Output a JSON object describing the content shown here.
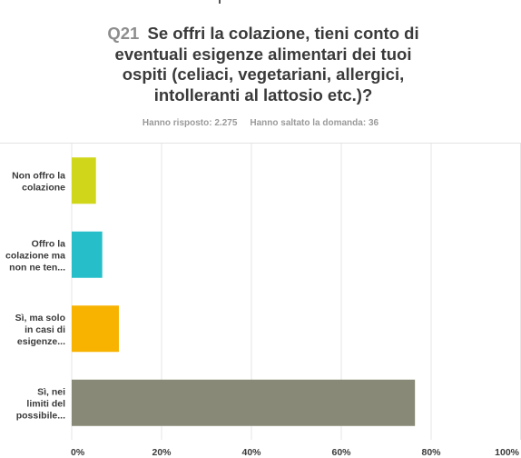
{
  "question": {
    "number": "Q21",
    "title_lines": [
      "Se offri la colazione, tieni conto di",
      "eventuali esigenze alimentari dei tuoi",
      "ospiti (celiaci, vegetariani, allergici,",
      "intolleranti al lattosio etc.)?"
    ]
  },
  "meta": {
    "answered": "Hanno risposto: 2.275",
    "skipped": "Hanno saltato la domanda: 36"
  },
  "chart_data": {
    "type": "bar",
    "orientation": "horizontal",
    "categories": [
      [
        "Non offro la",
        "colazione"
      ],
      [
        "Offro la",
        "colazione ma",
        "non ne ten..."
      ],
      [
        "Sì, ma solo",
        "in casi di",
        "esigenze..."
      ],
      [
        "Sì, nei",
        "limiti del",
        "possibile..."
      ]
    ],
    "values": [
      5.4,
      6.8,
      10.5,
      76.4
    ],
    "colors": [
      "#d0d71a",
      "#26bfc9",
      "#f8b300",
      "#888977"
    ],
    "xlim": [
      0,
      100
    ],
    "xticks": [
      0,
      20,
      40,
      60,
      80,
      100
    ],
    "xtick_labels": [
      "0%",
      "20%",
      "40%",
      "60%",
      "80%",
      "100%"
    ],
    "grid": true
  }
}
